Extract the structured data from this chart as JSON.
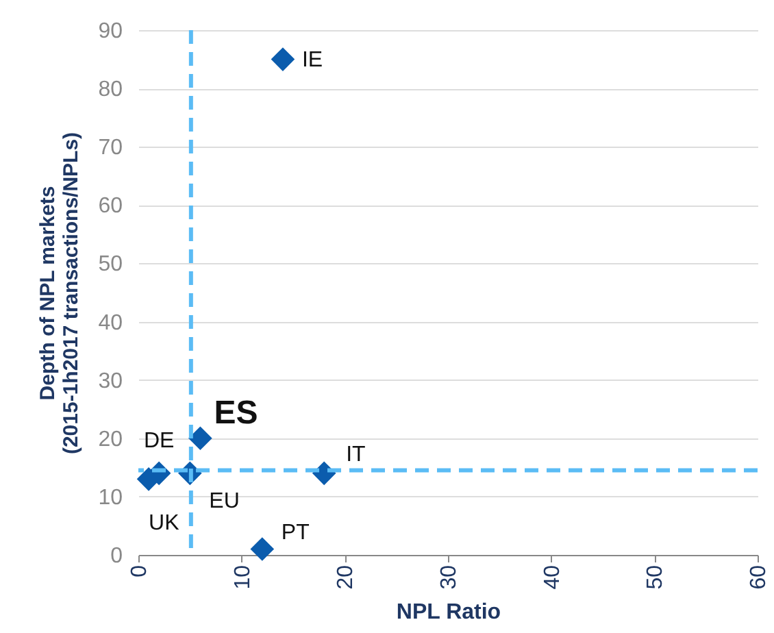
{
  "chart_data": {
    "type": "scatter",
    "xlabel": "NPL Ratio",
    "ylabel": "Depth of NPL markets (2015-1h2017 transactions/NPLs)",
    "x": [
      14,
      6,
      2,
      18,
      1,
      5,
      12
    ],
    "series": [
      {
        "color": "#0b5cad",
        "values": [
          85,
          20,
          14,
          14,
          13,
          14,
          1
        ]
      }
    ],
    "xlim": [
      0,
      60
    ],
    "xticks": [
      0,
      10,
      20,
      30,
      40,
      50,
      60
    ],
    "ylim": [
      0,
      90
    ],
    "yticks": [
      0,
      10,
      20,
      30,
      40,
      50,
      60,
      70,
      80,
      90
    ],
    "grid": "y",
    "marker": "diamond",
    "ref_lines": [
      {
        "axis": "x",
        "value": 5.1,
        "color": "#5bbcf5",
        "line_style": "dashed"
      },
      {
        "axis": "y",
        "value": 14.5,
        "color": "#5bbcf5",
        "line_style": "dashed"
      }
    ],
    "annotations": [
      {
        "text": "IE",
        "x": 14,
        "y": 85
      },
      {
        "text": "ES",
        "x": 6,
        "y": 20
      },
      {
        "text": "DE",
        "x": 2,
        "y": 14
      },
      {
        "text": "IT",
        "x": 18,
        "y": 14
      },
      {
        "text": "UK",
        "x": 1,
        "y": 13
      },
      {
        "text": "EU",
        "x": 5,
        "y": 14
      },
      {
        "text": "PT",
        "x": 12,
        "y": 1
      }
    ]
  }
}
